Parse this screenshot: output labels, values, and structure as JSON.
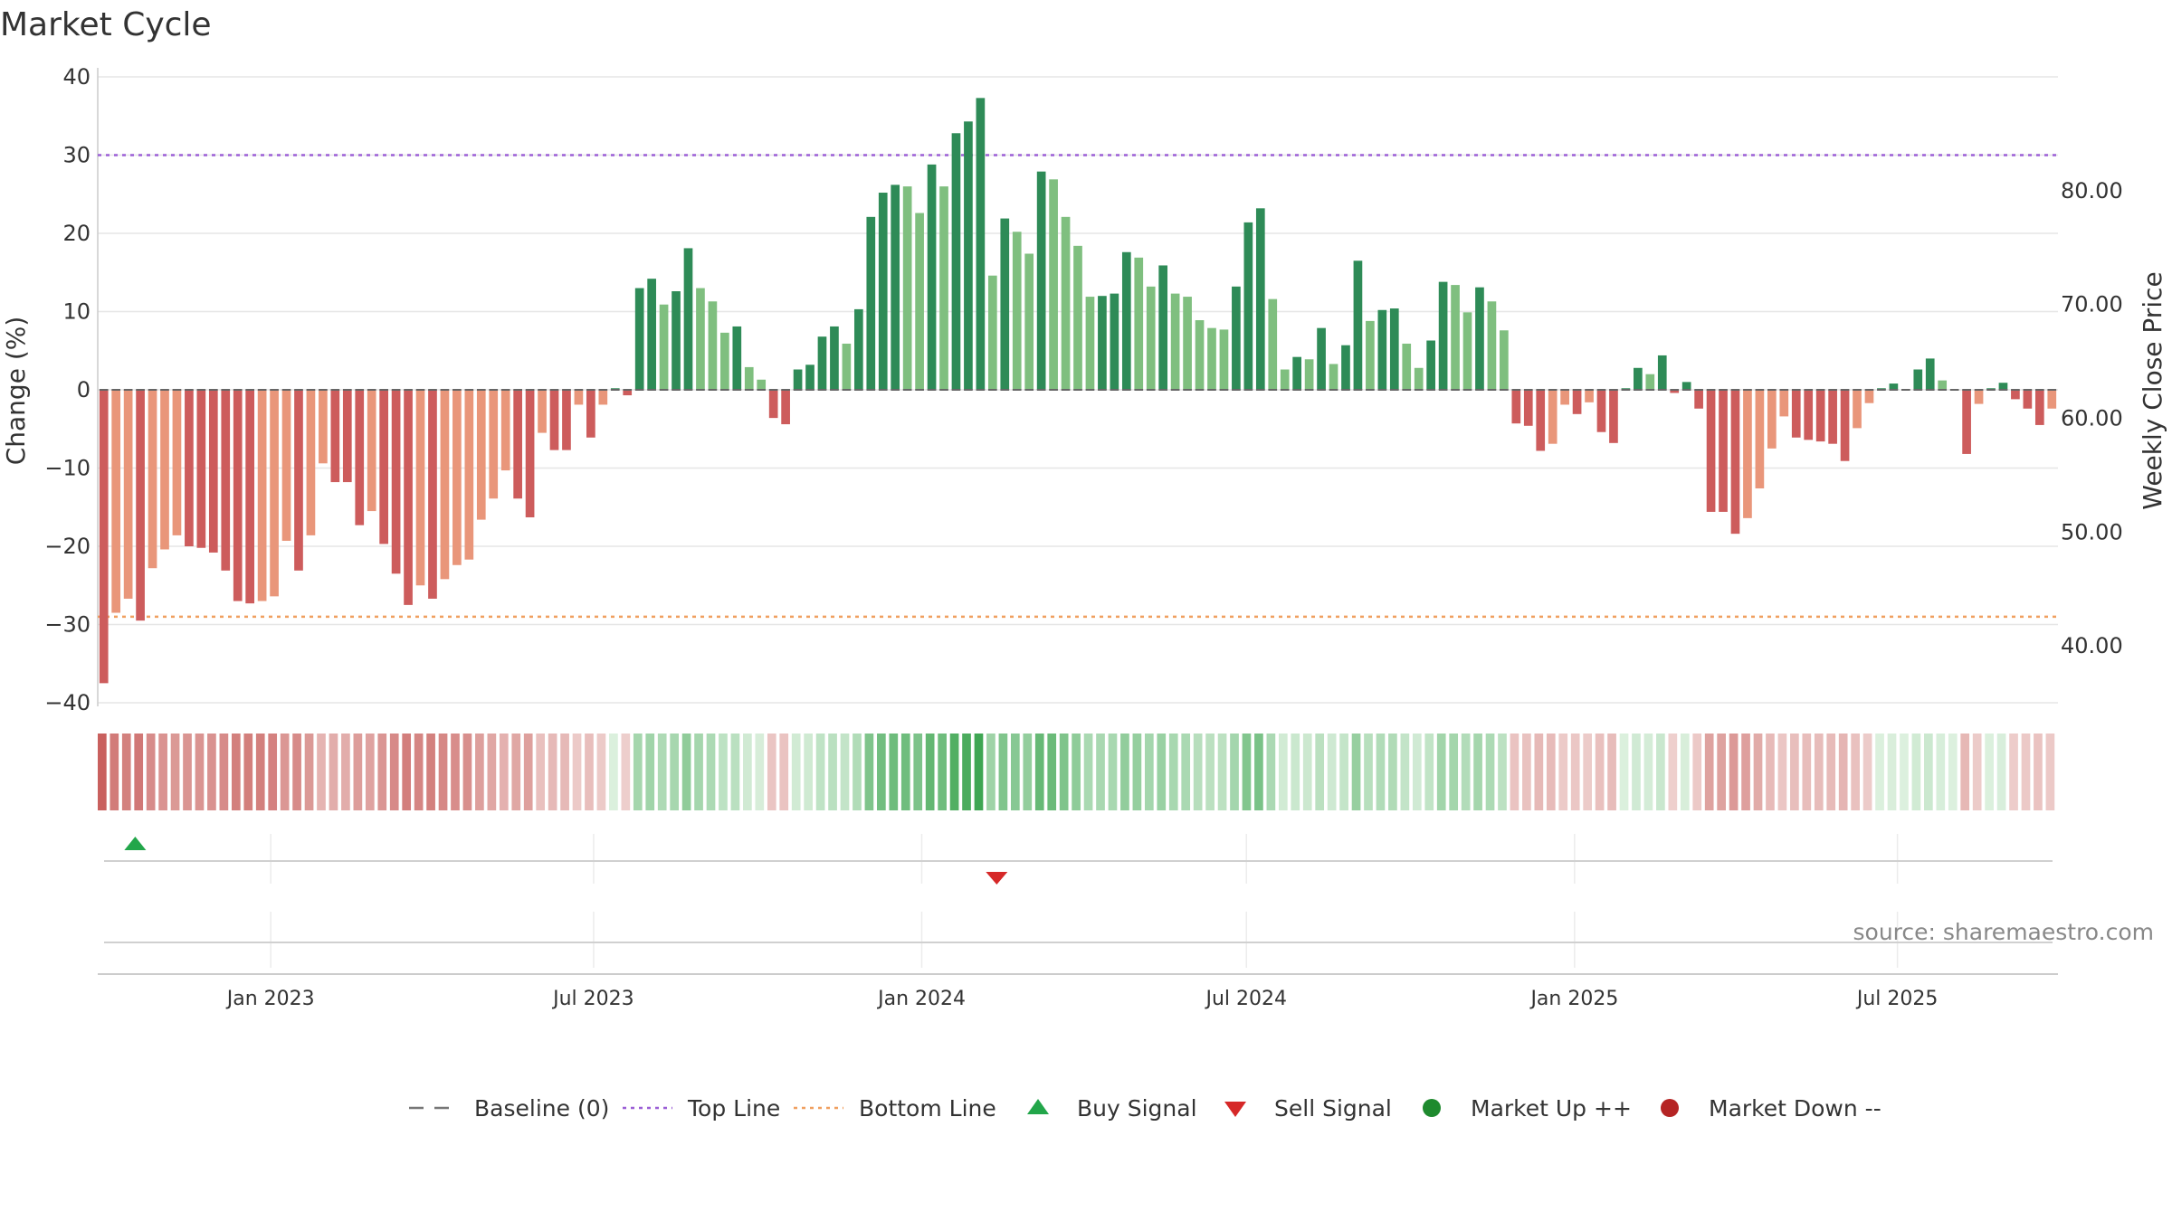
{
  "chart_data": {
    "type": "bar",
    "title": "Market Cycle",
    "ylabel": "Change (%)",
    "y2label": "Weekly Close Price",
    "ylim": [
      -40,
      40
    ],
    "y_ticks": [
      40,
      30,
      20,
      10,
      0,
      -10,
      -20,
      -30,
      -40
    ],
    "y_tick_labels": [
      "40",
      "30",
      "20",
      "10",
      "0",
      "−10",
      "−20",
      "−30",
      "−40"
    ],
    "y2lim": [
      35,
      90
    ],
    "y2_ticks": [
      80,
      70,
      60,
      50,
      40
    ],
    "y2_tick_labels": [
      "80.00",
      "70.00",
      "60.00",
      "50.00",
      "40.00"
    ],
    "top_line": 30,
    "bottom_line": -29,
    "baseline": 0,
    "x_start": "2022-09-26",
    "x_end": "2025-09-29",
    "x_ticks": [
      {
        "date": "2023-01-01",
        "label": "Jan 2023"
      },
      {
        "date": "2023-07-01",
        "label": "Jul 2023"
      },
      {
        "date": "2024-01-01",
        "label": "Jan 2024"
      },
      {
        "date": "2024-07-01",
        "label": "Jul 2024"
      },
      {
        "date": "2025-01-01",
        "label": "Jan 2025"
      },
      {
        "date": "2025-07-01",
        "label": "Jul 2025"
      }
    ],
    "grid": true,
    "series": [
      {
        "name": "Change (%)",
        "values": [
          -37.5,
          -28.5,
          -26.7,
          -29.5,
          -22.8,
          -20.4,
          -18.6,
          -20,
          -20.2,
          -20.8,
          -23.1,
          -27,
          -27.3,
          -27,
          -26.4,
          -19.3,
          -23.1,
          -18.6,
          -9.4,
          -11.8,
          -11.8,
          -17.3,
          -15.5,
          -19.7,
          -23.5,
          -27.5,
          -25,
          -26.7,
          -24.2,
          -22.4,
          -21.7,
          -16.6,
          -13.9,
          -10.3,
          -13.9,
          -16.3,
          -5.5,
          -7.7,
          -7.7,
          -1.9,
          -6.1,
          -1.9,
          0.2,
          -0.7,
          13,
          14.2,
          10.9,
          12.6,
          18.1,
          13,
          11.3,
          7.3,
          8.1,
          2.9,
          1.3,
          -3.6,
          -4.4,
          2.6,
          3.2,
          6.8,
          8.1,
          5.9,
          10.3,
          22.1,
          25.2,
          26.2,
          26,
          22.6,
          28.8,
          26,
          32.8,
          34.3,
          37.3,
          14.6,
          21.9,
          20.2,
          17.4,
          27.9,
          26.9,
          22.1,
          18.4,
          11.9,
          12,
          12.3,
          17.6,
          16.9,
          13.2,
          15.9,
          12.3,
          11.9,
          8.9,
          7.9,
          7.7,
          13.2,
          21.4,
          23.2,
          11.6,
          2.6,
          4.2,
          3.9,
          7.9,
          3.3,
          5.7,
          16.5,
          8.8,
          10.2,
          10.4,
          5.9,
          2.8,
          6.3,
          13.8,
          13.4,
          9.9,
          13.1,
          11.3,
          7.6,
          -4.3,
          -4.6,
          -7.8,
          -6.9,
          -1.9,
          -3.1,
          -1.6,
          -5.4,
          -6.8,
          0.2,
          2.8,
          2,
          4.4,
          -0.4,
          1,
          -2.4,
          -15.6,
          -15.6,
          -18.4,
          -16.4,
          -12.6,
          -7.5,
          -3.4,
          -6.1,
          -6.4,
          -6.6,
          -6.9,
          -9.1,
          -4.9,
          -1.7,
          0.2,
          0.8,
          0.1,
          2.6,
          4,
          1.2,
          0.1,
          -8.2,
          -1.8,
          0.2,
          0.9,
          -1.2,
          -2.4,
          -4.5,
          -2.4
        ]
      },
      {
        "name": "Weekly Close Price",
        "values": []
      }
    ],
    "heat_strip": {
      "values": [
        -37.5,
        -28.5,
        -26.7,
        -29.5,
        -22.8,
        -20.4,
        -18.6,
        -20,
        -20.2,
        -20.8,
        -23.1,
        -27,
        -27.3,
        -27,
        -26.4,
        -19.3,
        -23.1,
        -18.6,
        -9.4,
        -11.8,
        -11.8,
        -17.3,
        -15.5,
        -19.7,
        -23.5,
        -27.5,
        -25,
        -26.7,
        -24.2,
        -22.4,
        -21.7,
        -16.6,
        -13.9,
        -10.3,
        -13.9,
        -16.3,
        -5.5,
        -7.7,
        -7.7,
        -1.9,
        -6.1,
        -1.9,
        0.2,
        -0.7,
        13,
        14.2,
        10.9,
        12.6,
        18.1,
        13,
        11.3,
        7.3,
        8.1,
        2.9,
        1.3,
        -3.6,
        -4.4,
        2.6,
        3.2,
        6.8,
        8.1,
        5.9,
        10.3,
        22.1,
        25.2,
        26.2,
        26,
        22.6,
        28.8,
        26,
        32.8,
        34.3,
        37.3,
        14.6,
        21.9,
        20.2,
        17.4,
        27.9,
        26.9,
        22.1,
        18.4,
        11.9,
        12,
        12.3,
        17.6,
        16.9,
        13.2,
        15.9,
        12.3,
        11.9,
        8.9,
        7.9,
        7.7,
        13.2,
        21.4,
        23.2,
        11.6,
        2.6,
        4.2,
        3.9,
        7.9,
        3.3,
        5.7,
        16.5,
        8.8,
        10.2,
        10.4,
        5.9,
        2.8,
        6.3,
        13.8,
        13.4,
        9.9,
        13.1,
        11.3,
        7.6,
        -4.3,
        -4.6,
        -7.8,
        -6.9,
        -1.9,
        -3.1,
        -1.6,
        -5.4,
        -6.8,
        0.2,
        2.8,
        2,
        4.4,
        -0.4,
        1,
        -2.4,
        -15.6,
        -15.6,
        -18.4,
        -16.4,
        -12.6,
        -7.5,
        -3.4,
        -6.1,
        -6.4,
        -6.6,
        -6.9,
        -9.1,
        -4.9,
        -1.7,
        0.2,
        0.8,
        0.1,
        2.6,
        4,
        1.2,
        0.1,
        -8.2,
        -1.8,
        0.2,
        0.9,
        -1.2,
        -2.4,
        -4.5,
        -2.4
      ]
    },
    "signals": [
      {
        "type": "buy",
        "date": "2022-10-17"
      },
      {
        "type": "sell",
        "date": "2024-02-12"
      }
    ],
    "legend": {
      "placement": "bottom",
      "items": [
        {
          "label": "Baseline (0)",
          "symbol": "dash-line",
          "color": "#777777"
        },
        {
          "label": "Top Line",
          "symbol": "dot-line",
          "color": "#9b5fd6"
        },
        {
          "label": "Bottom Line",
          "symbol": "dot-line",
          "color": "#f0a060"
        },
        {
          "label": "Buy Signal",
          "symbol": "triangle-up",
          "color": "#22a64a"
        },
        {
          "label": "Sell Signal",
          "symbol": "triangle-down",
          "color": "#d62828"
        },
        {
          "label": "Market Up ++",
          "symbol": "circle",
          "color": "#1e8a2e"
        },
        {
          "label": "Market Down --",
          "symbol": "circle",
          "color": "#b52424"
        }
      ]
    },
    "source": "source: sharemaestro.com",
    "colors": {
      "up_strong": "#2e8b57",
      "up_weak": "#7fbf7f",
      "down_strong": "#cd5c5c",
      "down_weak": "#e9967a",
      "top_line": "#9b5fd6",
      "bottom_line": "#f0a060",
      "grid": "#e6e6e6",
      "axis": "#cccccc"
    }
  }
}
